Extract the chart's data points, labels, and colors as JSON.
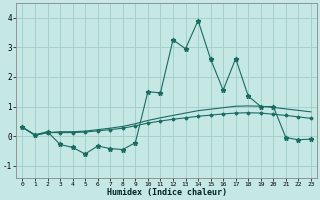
{
  "xlabel": "Humidex (Indice chaleur)",
  "xlim": [
    -0.5,
    23.5
  ],
  "ylim": [
    -1.4,
    4.5
  ],
  "yticks": [
    -1,
    0,
    1,
    2,
    3,
    4
  ],
  "xticks": [
    0,
    1,
    2,
    3,
    4,
    5,
    6,
    7,
    8,
    9,
    10,
    11,
    12,
    13,
    14,
    15,
    16,
    17,
    18,
    19,
    20,
    21,
    22,
    23
  ],
  "bg_color": "#c5e8e5",
  "grid_color": "#a0ccc8",
  "line_color": "#1a6b60",
  "x": [
    0,
    1,
    2,
    3,
    4,
    5,
    6,
    7,
    8,
    9,
    10,
    11,
    12,
    13,
    14,
    15,
    16,
    17,
    18,
    19,
    20,
    21,
    22,
    23
  ],
  "y_top": [
    0.3,
    0.05,
    0.15,
    -0.28,
    -0.38,
    -0.6,
    -0.33,
    -0.42,
    -0.45,
    -0.22,
    1.5,
    1.46,
    3.25,
    2.95,
    3.9,
    2.6,
    1.55,
    2.62,
    1.35,
    1.0,
    1.0,
    -0.05,
    -0.12,
    -0.1
  ],
  "y_mid": [
    0.3,
    0.03,
    0.12,
    0.15,
    0.15,
    0.17,
    0.22,
    0.27,
    0.33,
    0.42,
    0.53,
    0.62,
    0.7,
    0.78,
    0.86,
    0.91,
    0.96,
    1.01,
    1.02,
    1.01,
    0.97,
    0.92,
    0.87,
    0.82
  ],
  "y_bot": [
    0.3,
    0.03,
    0.12,
    0.12,
    0.12,
    0.14,
    0.18,
    0.22,
    0.27,
    0.35,
    0.44,
    0.51,
    0.57,
    0.62,
    0.67,
    0.71,
    0.75,
    0.78,
    0.79,
    0.78,
    0.74,
    0.7,
    0.65,
    0.6
  ]
}
